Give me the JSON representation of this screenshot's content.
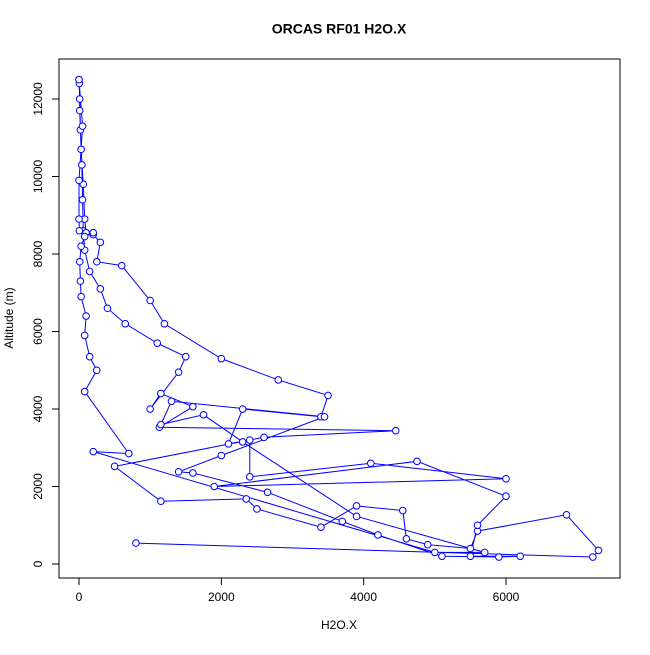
{
  "chart_data": {
    "type": "line",
    "title": "ORCAS RF01 H2O.X",
    "xlabel": "H2O.X",
    "ylabel": "Altitude (m)",
    "color": "#0000ff",
    "markers": true,
    "xlim": [
      -281,
      7602
    ],
    "ylim": [
      -361,
      13032
    ],
    "xticks": [
      0,
      2000,
      4000,
      6000
    ],
    "yticks": [
      0,
      2000,
      4000,
      6000,
      8000,
      10000,
      12000
    ],
    "x": [
      800,
      7220,
      7300,
      6850,
      5600,
      5500,
      4900,
      4600,
      4550,
      3900,
      3400,
      2500,
      2350,
      1150,
      500,
      2600,
      4450,
      1130,
      1600,
      1150,
      1000,
      1400,
      1500,
      1100,
      650,
      400,
      300,
      150,
      80,
      60,
      50,
      40,
      20,
      10,
      0,
      5,
      10,
      30,
      60,
      80,
      100,
      200,
      300,
      250,
      600,
      1000,
      1200,
      2000,
      2800,
      3500,
      3400,
      2300,
      2100,
      2400,
      2400,
      4100,
      6000,
      1900,
      4750,
      6000,
      5600,
      5500,
      6200,
      5900,
      5100,
      4200,
      3700,
      2650,
      1600,
      1400,
      2000,
      3450,
      1300,
      1150,
      1750,
      2300,
      3900,
      5700,
      5000,
      200,
      700,
      80,
      250,
      150,
      80,
      100,
      30,
      20,
      10,
      30,
      80,
      200,
      5,
      0,
      0,
      50,
      0
    ],
    "values": [
      540,
      180,
      350,
      1270,
      850,
      400,
      500,
      650,
      1380,
      1500,
      950,
      1420,
      1680,
      1620,
      2520,
      3270,
      3440,
      3530,
      4060,
      4400,
      4000,
      4950,
      5350,
      5700,
      6200,
      6600,
      7100,
      7550,
      8100,
      8600,
      9400,
      10300,
      11200,
      12000,
      12500,
      12400,
      11700,
      10700,
      9800,
      8900,
      8550,
      8500,
      8300,
      7800,
      7700,
      6800,
      6200,
      5300,
      4750,
      4350,
      3800,
      4000,
      3100,
      3200,
      2250,
      2600,
      2200,
      2000,
      2650,
      1750,
      1000,
      200,
      200,
      180,
      200,
      750,
      1100,
      1850,
      2350,
      2380,
      2800,
      3800,
      4200,
      3600,
      3850,
      3150,
      1230,
      300,
      300,
      2900,
      2850,
      4450,
      5000,
      5350,
      5900,
      6400,
      6900,
      7300,
      7800,
      8200,
      8450,
      8550,
      8600,
      8900,
      9900,
      11300,
      12500
    ]
  }
}
